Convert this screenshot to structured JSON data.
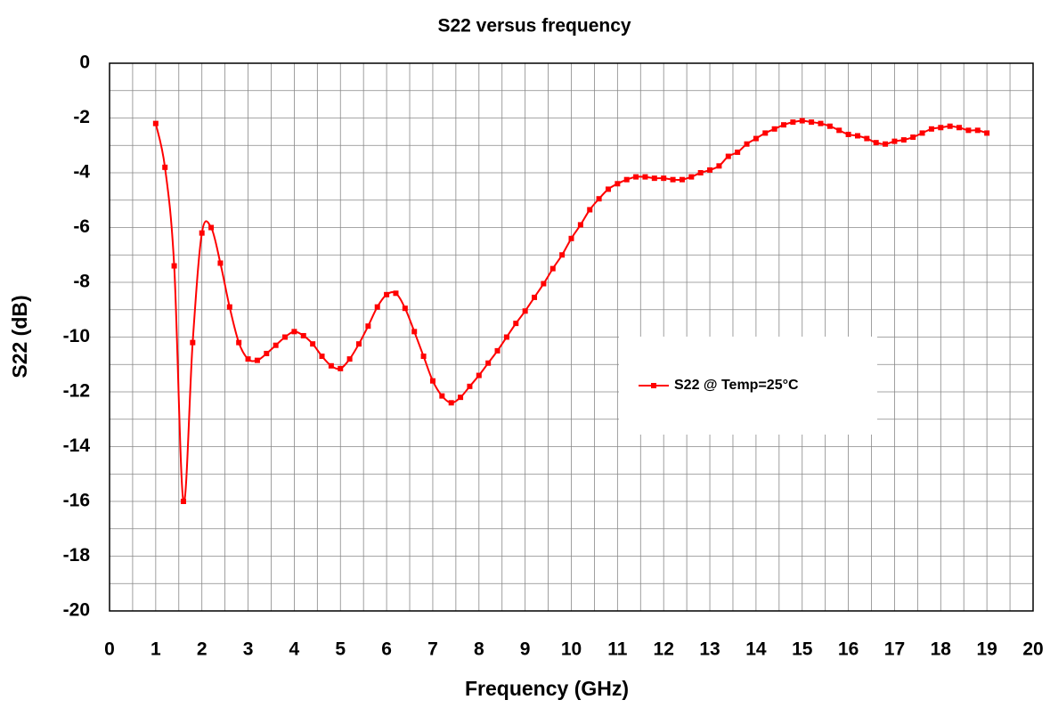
{
  "chart_data": {
    "type": "line",
    "title": "S22 versus frequency",
    "xlabel": "Frequency (GHz)",
    "ylabel": "S22 (dB)",
    "x": [
      1.0,
      1.2,
      1.4,
      1.6,
      1.8,
      2.0,
      2.2,
      2.4,
      2.6,
      2.8,
      3.0,
      3.2,
      3.4,
      3.6,
      3.8,
      4.0,
      4.2,
      4.4,
      4.6,
      4.8,
      5.0,
      5.2,
      5.4,
      5.6,
      5.8,
      6.0,
      6.2,
      6.4,
      6.6,
      6.8,
      7.0,
      7.2,
      7.4,
      7.6,
      7.8,
      8.0,
      8.2,
      8.4,
      8.6,
      8.8,
      9.0,
      9.2,
      9.4,
      9.6,
      9.8,
      10.0,
      10.2,
      10.4,
      10.6,
      10.8,
      11.0,
      11.2,
      11.4,
      11.6,
      11.8,
      12.0,
      12.2,
      12.4,
      12.6,
      12.8,
      13.0,
      13.2,
      13.4,
      13.6,
      13.8,
      14.0,
      14.2,
      14.4,
      14.6,
      14.8,
      15.0,
      15.2,
      15.4,
      15.6,
      15.8,
      16.0,
      16.2,
      16.4,
      16.6,
      16.8,
      17.0,
      17.2,
      17.4,
      17.6,
      17.8,
      18.0,
      18.2,
      18.4,
      18.6,
      18.8,
      19.0
    ],
    "series": [
      {
        "name": "S22 @ Temp=25°C",
        "color": "#ff0000",
        "values": [
          -2.2,
          -3.8,
          -7.4,
          -16.0,
          -10.2,
          -6.2,
          -6.0,
          -7.3,
          -8.9,
          -10.2,
          -10.8,
          -10.85,
          -10.6,
          -10.3,
          -10.0,
          -9.8,
          -9.95,
          -10.25,
          -10.7,
          -11.05,
          -11.15,
          -10.8,
          -10.25,
          -9.6,
          -8.9,
          -8.45,
          -8.4,
          -8.95,
          -9.8,
          -10.7,
          -11.6,
          -12.15,
          -12.4,
          -12.2,
          -11.8,
          -11.4,
          -10.95,
          -10.5,
          -10.0,
          -9.5,
          -9.05,
          -8.55,
          -8.05,
          -7.5,
          -7.0,
          -6.4,
          -5.9,
          -5.35,
          -4.95,
          -4.6,
          -4.4,
          -4.25,
          -4.15,
          -4.15,
          -4.2,
          -4.2,
          -4.25,
          -4.25,
          -4.15,
          -4.0,
          -3.9,
          -3.75,
          -3.4,
          -3.25,
          -2.95,
          -2.75,
          -2.55,
          -2.4,
          -2.25,
          -2.15,
          -2.1,
          -2.15,
          -2.2,
          -2.3,
          -2.45,
          -2.6,
          -2.65,
          -2.75,
          -2.9,
          -2.95,
          -2.85,
          -2.8,
          -2.7,
          -2.55,
          -2.4,
          -2.35,
          -2.3,
          -2.35,
          -2.45,
          -2.45,
          -2.55
        ]
      }
    ],
    "xlim": [
      0,
      20
    ],
    "xticks": [
      0,
      1,
      2,
      3,
      4,
      5,
      6,
      7,
      8,
      9,
      10,
      11,
      12,
      13,
      14,
      15,
      16,
      17,
      18,
      19,
      20
    ],
    "ylim": [
      -20,
      0
    ],
    "yticks": [
      0,
      -2,
      -4,
      -6,
      -8,
      -10,
      -12,
      -14,
      -16,
      -18,
      -20
    ],
    "xminorticks": [
      0.5,
      1.5,
      2.5,
      3.5,
      4.5,
      5.5,
      6.5,
      7.5,
      8.5,
      9.5,
      10.5,
      11.5,
      12.5,
      13.5,
      14.5,
      15.5,
      16.5,
      17.5,
      18.5,
      19.5
    ],
    "yminorticks": [
      -1,
      -3,
      -5,
      -7,
      -9,
      -11,
      -13,
      -15,
      -17,
      -19
    ],
    "grid": true,
    "legend": "center-right"
  }
}
